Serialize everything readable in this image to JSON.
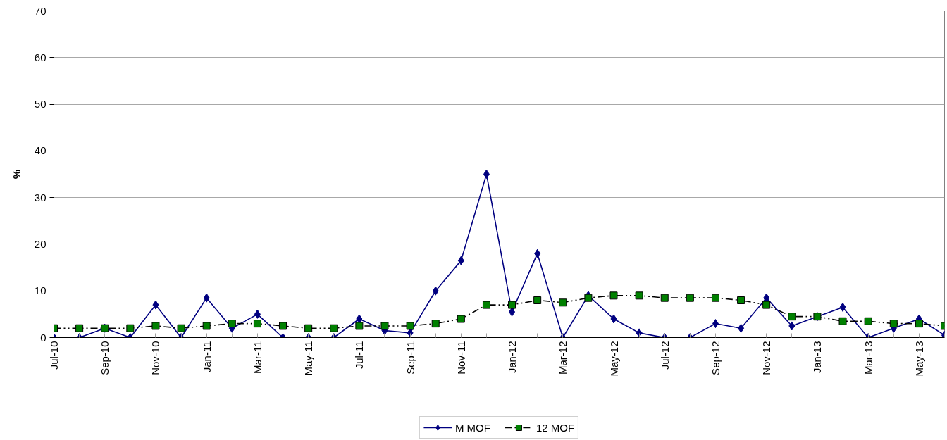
{
  "chart_data": {
    "type": "line",
    "ylabel": "%",
    "categories": [
      "Jul-10",
      null,
      "Sep-10",
      null,
      "Nov-10",
      null,
      "Jan-11",
      null,
      "Mar-11",
      null,
      "May-11",
      null,
      "Jul-11",
      null,
      "Sep-11",
      null,
      "Nov-11",
      null,
      "Jan-12",
      null,
      "Mar-12",
      null,
      "May-12",
      null,
      "Jul-12",
      null,
      "Sep-12",
      null,
      "Nov-12",
      null,
      "Jan-13",
      null,
      "Mar-13",
      null,
      "May-13",
      null
    ],
    "series": [
      {
        "name": "M MOF",
        "color": "#000080",
        "marker": "diamond",
        "line_style": "solid",
        "values": [
          0,
          0,
          2,
          0,
          7,
          0,
          8.5,
          2,
          5,
          0,
          0,
          0,
          4,
          1.5,
          1,
          10,
          16.5,
          35,
          5.5,
          18,
          0,
          9,
          4,
          1,
          0,
          0,
          3,
          2,
          8.5,
          2.5,
          4.5,
          6.5,
          0,
          2,
          4,
          0.5
        ]
      },
      {
        "name": "12 MOF",
        "color": "#008000",
        "marker": "square",
        "line_style": "dashed",
        "values": [
          2,
          2,
          2,
          2,
          2.5,
          2,
          2.5,
          3,
          3,
          2.5,
          2,
          2,
          2.5,
          2.5,
          2.5,
          3,
          4,
          7,
          7,
          8,
          7.5,
          8.5,
          9,
          9,
          8.5,
          8.5,
          8.5,
          8,
          7,
          4.5,
          4.5,
          3.5,
          3.5,
          3,
          3,
          2.5
        ]
      }
    ],
    "ylim": [
      0,
      70
    ],
    "yticks": [
      0,
      10,
      20,
      30,
      40,
      50,
      60,
      70
    ],
    "grid": "y",
    "legend": "bottom"
  }
}
